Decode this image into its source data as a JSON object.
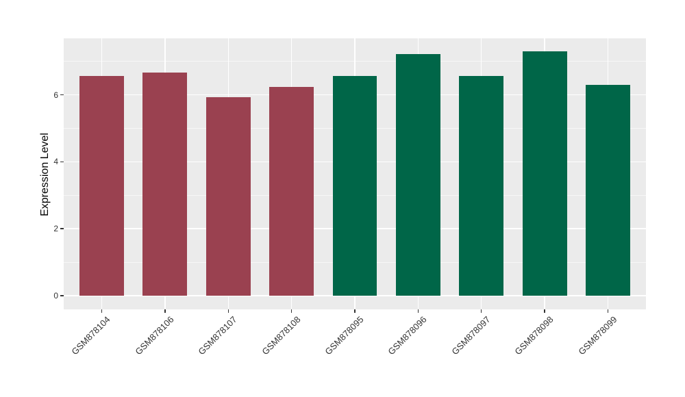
{
  "chart_data": {
    "type": "bar",
    "ylabel": "Expression Level",
    "xlabel": "",
    "categories": [
      "GSM878104",
      "GSM878106",
      "GSM878107",
      "GSM878108",
      "GSM878095",
      "GSM878096",
      "GSM878097",
      "GSM878098",
      "GSM878099"
    ],
    "values": [
      6.57,
      6.66,
      5.93,
      6.23,
      6.56,
      7.21,
      6.56,
      7.31,
      6.29
    ],
    "bar_groups": [
      "maroon",
      "maroon",
      "maroon",
      "maroon",
      "green",
      "green",
      "green",
      "green",
      "green"
    ],
    "group_colors": {
      "maroon": "#9A4150",
      "green": "#006648"
    },
    "yaxis": {
      "ticks": [
        0,
        2,
        4,
        6
      ],
      "minor_ticks": [
        1,
        3,
        5,
        7
      ],
      "range": [
        -0.41,
        7.69
      ]
    },
    "legend": "none",
    "grid": "major+minor",
    "style": {
      "panel_bg": "#EBEBEB",
      "grid_major": "#FFFFFF",
      "grid_minor": "rgba(255,255,255,0.6)",
      "tick_mark_color": "#333333",
      "tick_label_color": "#333333",
      "axis_title_color": "#000000"
    }
  }
}
